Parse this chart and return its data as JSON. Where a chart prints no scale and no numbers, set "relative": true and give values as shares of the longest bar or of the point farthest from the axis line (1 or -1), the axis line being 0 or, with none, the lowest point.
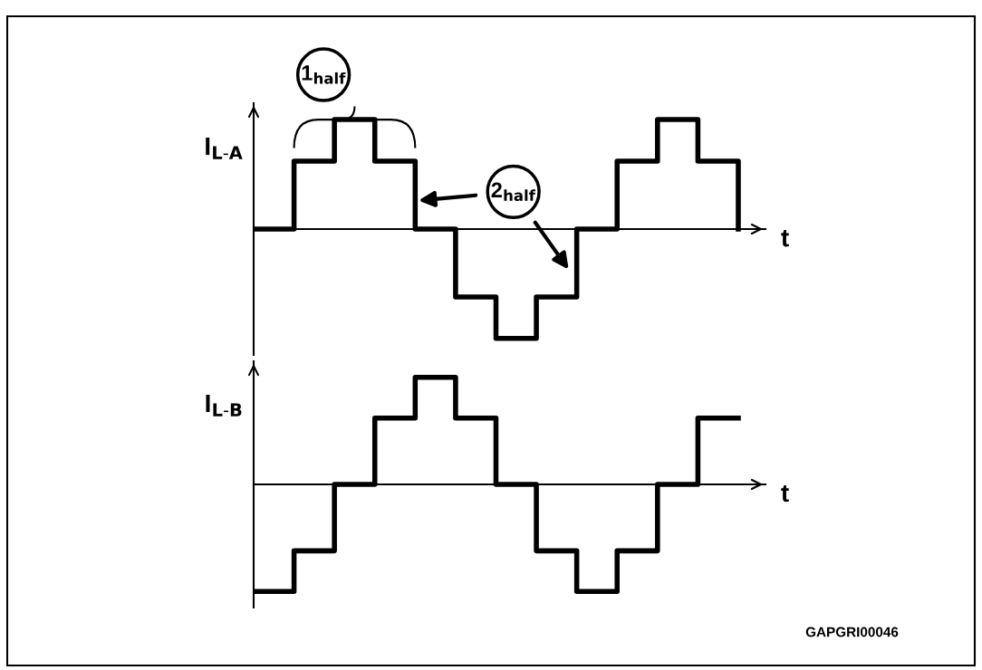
{
  "chart_data": [
    {
      "type": "step",
      "relative": true,
      "categories": [
        null,
        null,
        null,
        null,
        null,
        null,
        null,
        null,
        null,
        null,
        null,
        null,
        null
      ],
      "color": "#000000",
      "ylabel": "I$_{L-A}$",
      "xlabel": "t",
      "values": [
        0,
        0.62,
        1,
        0.62,
        0,
        -0.62,
        -1,
        -0.62,
        0,
        0.62,
        1,
        0.62,
        0
      ],
      "annotations": [
        "1$_{half}$",
        "2$_{half}$"
      ]
    },
    {
      "type": "step",
      "relative": true,
      "categories": [
        null,
        null,
        null,
        null,
        null,
        null,
        null,
        null,
        null,
        null,
        null,
        null,
        null
      ],
      "color": "#000000",
      "ylabel": "I$_{L-B}$",
      "xlabel": "t",
      "values": [
        -1,
        -0.62,
        0,
        0.62,
        1,
        0.62,
        0,
        -0.62,
        -1,
        -0.62,
        0,
        0.62,
        0.62
      ],
      "annotations": [
        "GAPGRI00046"
      ]
    }
  ]
}
